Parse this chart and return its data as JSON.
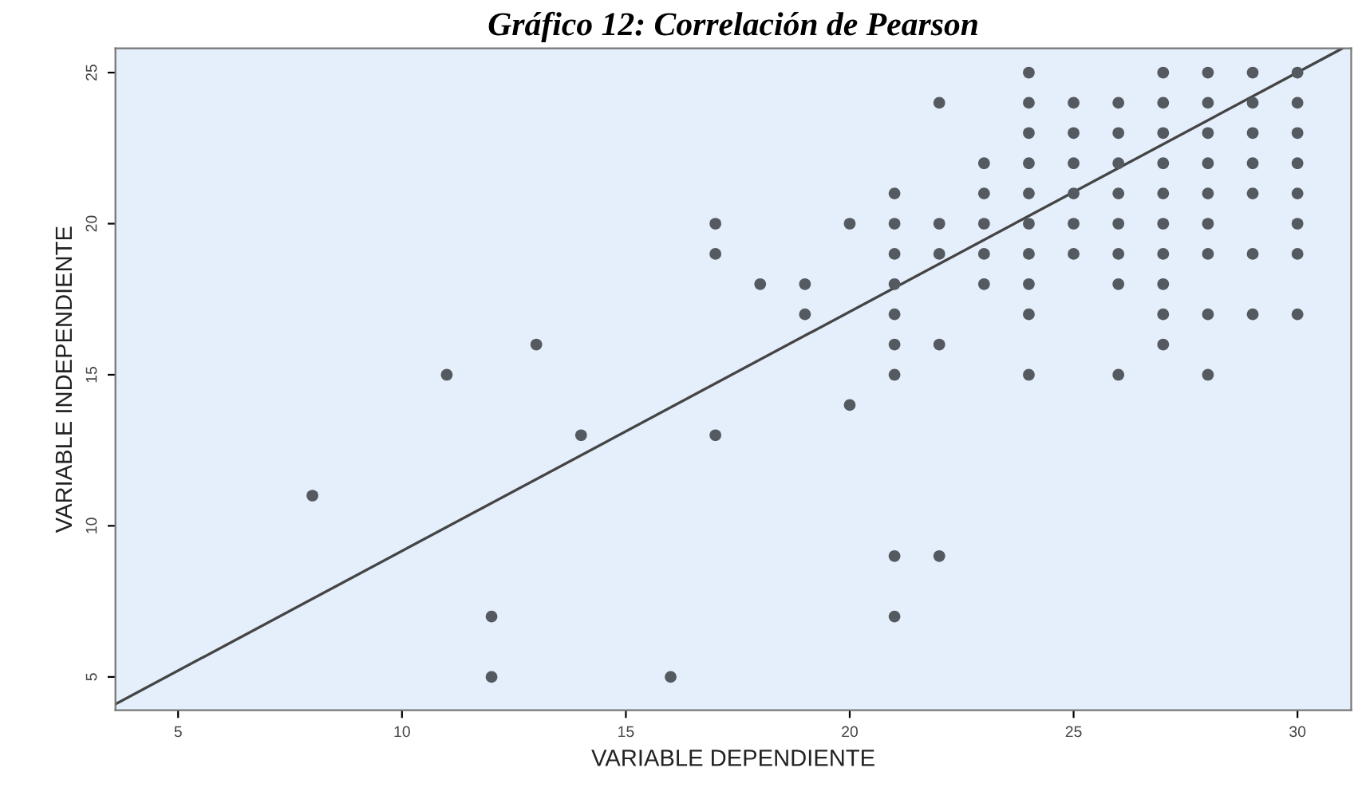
{
  "chart_data": {
    "type": "scatter",
    "title": "Gráfico 12: Correlación de Pearson",
    "xlabel": "VARIABLE DEPENDIENTE",
    "ylabel": "VARIABLE INDEPENDIENTE",
    "xlim": [
      3.6,
      31.2
    ],
    "ylim": [
      3.9,
      25.8
    ],
    "xticks": [
      5,
      10,
      15,
      20,
      25,
      30
    ],
    "yticks": [
      5,
      10,
      15,
      20,
      25
    ],
    "grid": false,
    "series": [
      {
        "color": "#555a60",
        "marker": "circle",
        "x": [
          24,
          27,
          28,
          29,
          30,
          22,
          24,
          25,
          26,
          27,
          28,
          29,
          30,
          24,
          25,
          26,
          27,
          28,
          29,
          30,
          23,
          24,
          25,
          26,
          27,
          28,
          29,
          30,
          21,
          23,
          24,
          25,
          26,
          27,
          28,
          29,
          30,
          20,
          21,
          22,
          23,
          24,
          25,
          26,
          27,
          28,
          30,
          21,
          22,
          23,
          24,
          25,
          26,
          27,
          28,
          29,
          30,
          18,
          19,
          21,
          23,
          24,
          26,
          27,
          19,
          21,
          24,
          27,
          28,
          29,
          30,
          21,
          22,
          27,
          21,
          24,
          26,
          28,
          20,
          21,
          22,
          21,
          17,
          17,
          17,
          11,
          13,
          14,
          8,
          12,
          12,
          16
        ],
        "values": [
          25,
          25,
          25,
          25,
          25,
          24,
          24,
          24,
          24,
          24,
          24,
          24,
          24,
          23,
          23,
          23,
          23,
          23,
          23,
          23,
          22,
          22,
          22,
          22,
          22,
          22,
          22,
          22,
          21,
          21,
          21,
          21,
          21,
          21,
          21,
          21,
          21,
          20,
          20,
          20,
          20,
          20,
          20,
          20,
          20,
          20,
          20,
          19,
          19,
          19,
          19,
          19,
          19,
          19,
          19,
          19,
          19,
          18,
          18,
          18,
          18,
          18,
          18,
          18,
          17,
          17,
          17,
          17,
          17,
          17,
          17,
          16,
          16,
          16,
          15,
          15,
          15,
          15,
          14,
          9,
          9,
          7,
          20,
          19,
          13,
          15,
          16,
          13,
          11,
          7,
          5,
          5
        ]
      },
      {
        "type": "line",
        "color": "#444444",
        "line_style": "solid",
        "x": [
          3.6,
          31.0
        ],
        "values": [
          4.1,
          25.8
        ]
      }
    ]
  }
}
